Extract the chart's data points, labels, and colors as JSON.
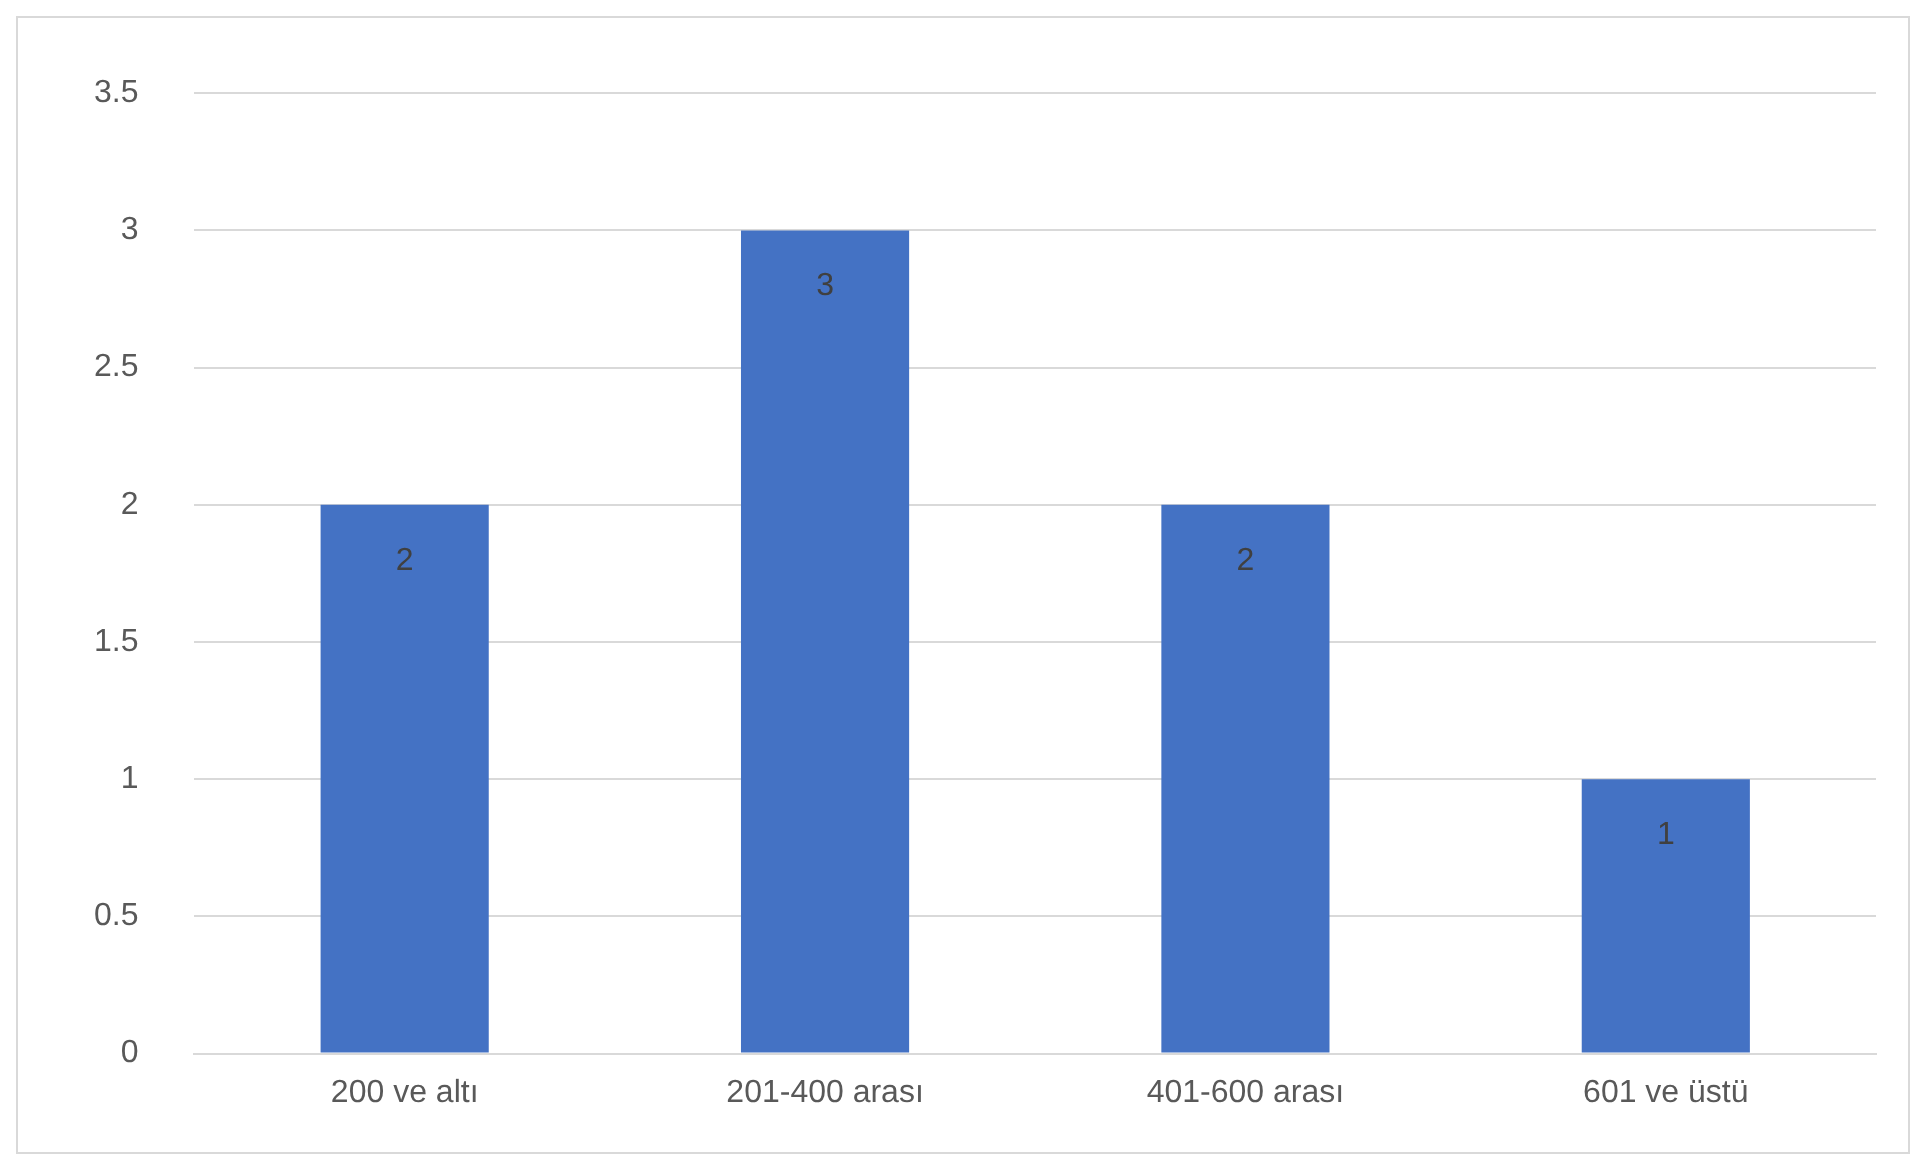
{
  "chart_data": {
    "type": "bar",
    "categories": [
      "200 ve altı",
      "201-400 arası",
      "401-600 arası",
      "601 ve üstü"
    ],
    "values": [
      2,
      3,
      2,
      1
    ],
    "color": "#4472c4",
    "ylim": [
      0,
      3.5
    ],
    "yticks": [
      0,
      0.5,
      1,
      1.5,
      2,
      2.5,
      3,
      3.5
    ],
    "grid": "y",
    "data_labels": true,
    "legend": false
  }
}
